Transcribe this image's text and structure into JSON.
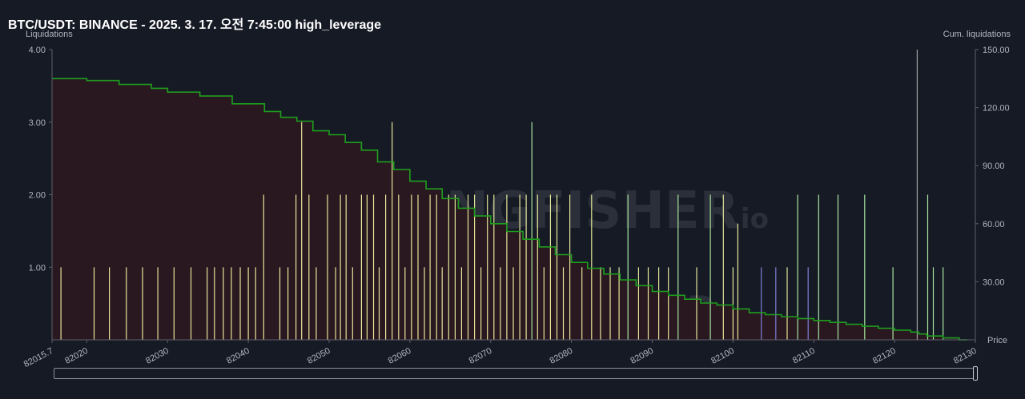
{
  "header": {
    "title": "BTC/USDT: BINANCE - 2025. 3. 17. 오전 7:45:00 high_leverage"
  },
  "watermark": {
    "text": "THE KINGFISHER",
    "suffix": ".io"
  },
  "colors": {
    "background": "#161a25",
    "cum_line": "#1e9e1e",
    "cum_fill": "#2a1820",
    "bar_yellow": "#e4e69a",
    "bar_green": "#a8e6a0",
    "bar_purple": "#8080d8",
    "bar_gray": "#a0a0a0"
  },
  "chart_data": {
    "type": "bar",
    "title": "BTC/USDT: BINANCE - 2025. 3. 17. 오전 7:45:00 high_leverage",
    "xlabel": "Price",
    "ylabel": "Liquidations",
    "y2label": "Cum. liquidations",
    "xlim": [
      82015.7,
      82130
    ],
    "ylim": [
      0,
      4
    ],
    "y2lim": [
      0,
      150
    ],
    "x_ticks": [
      "82015.7",
      "82020",
      "82030",
      "82040",
      "82050",
      "82060",
      "82070",
      "82080",
      "82090",
      "82100",
      "82110",
      "82120",
      "82130"
    ],
    "y_ticks": [
      "1.00",
      "2.00",
      "3.00",
      "4.00"
    ],
    "y2_ticks": [
      "30.00",
      "60.00",
      "90.00",
      "120.00",
      "150.00"
    ],
    "series": [
      {
        "type": "bar",
        "values": [
          {
            "x": 82016.8,
            "y": 1,
            "c": "yellow"
          },
          {
            "x": 82020.9,
            "y": 1,
            "c": "yellow"
          },
          {
            "x": 82022.8,
            "y": 1,
            "c": "yellow"
          },
          {
            "x": 82024.9,
            "y": 1,
            "c": "yellow"
          },
          {
            "x": 82026.9,
            "y": 1,
            "c": "yellow"
          },
          {
            "x": 82028.8,
            "y": 1,
            "c": "yellow"
          },
          {
            "x": 82030.8,
            "y": 1,
            "c": "yellow"
          },
          {
            "x": 82032.9,
            "y": 1,
            "c": "yellow"
          },
          {
            "x": 82034.9,
            "y": 1,
            "c": "yellow"
          },
          {
            "x": 82035.8,
            "y": 1,
            "c": "yellow"
          },
          {
            "x": 82036.9,
            "y": 1,
            "c": "yellow"
          },
          {
            "x": 82037.9,
            "y": 1,
            "c": "yellow"
          },
          {
            "x": 82039,
            "y": 1,
            "c": "yellow"
          },
          {
            "x": 82040,
            "y": 1,
            "c": "yellow"
          },
          {
            "x": 82040.9,
            "y": 1,
            "c": "yellow"
          },
          {
            "x": 82041.9,
            "y": 2,
            "c": "yellow"
          },
          {
            "x": 82043.9,
            "y": 1,
            "c": "yellow"
          },
          {
            "x": 82044.9,
            "y": 1,
            "c": "yellow"
          },
          {
            "x": 82045.9,
            "y": 2,
            "c": "yellow"
          },
          {
            "x": 82046.6,
            "y": 3,
            "c": "yellow"
          },
          {
            "x": 82047.5,
            "y": 2,
            "c": "yellow"
          },
          {
            "x": 82048.4,
            "y": 1,
            "c": "yellow"
          },
          {
            "x": 82049.8,
            "y": 2,
            "c": "yellow"
          },
          {
            "x": 82050.8,
            "y": 1,
            "c": "yellow"
          },
          {
            "x": 82051.4,
            "y": 2,
            "c": "yellow"
          },
          {
            "x": 82052.1,
            "y": 2,
            "c": "yellow"
          },
          {
            "x": 82052.9,
            "y": 1,
            "c": "yellow"
          },
          {
            "x": 82054,
            "y": 2,
            "c": "yellow"
          },
          {
            "x": 82054.7,
            "y": 2,
            "c": "yellow"
          },
          {
            "x": 82055.5,
            "y": 2,
            "c": "yellow"
          },
          {
            "x": 82056.2,
            "y": 1,
            "c": "yellow"
          },
          {
            "x": 82057,
            "y": 2,
            "c": "yellow"
          },
          {
            "x": 82057.8,
            "y": 3,
            "c": "yellow"
          },
          {
            "x": 82058.6,
            "y": 2,
            "c": "yellow"
          },
          {
            "x": 82059.4,
            "y": 1,
            "c": "yellow"
          },
          {
            "x": 82060.2,
            "y": 2,
            "c": "yellow"
          },
          {
            "x": 82061,
            "y": 2,
            "c": "yellow"
          },
          {
            "x": 82061.8,
            "y": 1,
            "c": "yellow"
          },
          {
            "x": 82062.5,
            "y": 2,
            "c": "yellow"
          },
          {
            "x": 82063.3,
            "y": 2,
            "c": "yellow"
          },
          {
            "x": 82064,
            "y": 1,
            "c": "yellow"
          },
          {
            "x": 82064.8,
            "y": 2,
            "c": "yellow"
          },
          {
            "x": 82065.6,
            "y": 2,
            "c": "yellow"
          },
          {
            "x": 82066.4,
            "y": 1,
            "c": "yellow"
          },
          {
            "x": 82067.2,
            "y": 2,
            "c": "yellow"
          },
          {
            "x": 82068,
            "y": 2,
            "c": "yellow"
          },
          {
            "x": 82068.8,
            "y": 1,
            "c": "yellow"
          },
          {
            "x": 82069.6,
            "y": 2,
            "c": "yellow"
          },
          {
            "x": 82070.4,
            "y": 2,
            "c": "yellow"
          },
          {
            "x": 82071.2,
            "y": 1,
            "c": "yellow"
          },
          {
            "x": 82072,
            "y": 2,
            "c": "yellow"
          },
          {
            "x": 82072.8,
            "y": 1,
            "c": "yellow"
          },
          {
            "x": 82073.6,
            "y": 2,
            "c": "yellow"
          },
          {
            "x": 82074.4,
            "y": 2,
            "c": "yellow"
          },
          {
            "x": 82075.1,
            "y": 3,
            "c": "green"
          },
          {
            "x": 82075.8,
            "y": 2,
            "c": "yellow"
          },
          {
            "x": 82076.6,
            "y": 1,
            "c": "yellow"
          },
          {
            "x": 82077.4,
            "y": 2,
            "c": "yellow"
          },
          {
            "x": 82078.2,
            "y": 2,
            "c": "yellow"
          },
          {
            "x": 82079,
            "y": 1,
            "c": "yellow"
          },
          {
            "x": 82079.8,
            "y": 2,
            "c": "yellow"
          },
          {
            "x": 82081.3,
            "y": 1,
            "c": "yellow"
          },
          {
            "x": 82082.5,
            "y": 2,
            "c": "yellow"
          },
          {
            "x": 82083.6,
            "y": 1,
            "c": "yellow"
          },
          {
            "x": 82084.8,
            "y": 1,
            "c": "yellow"
          },
          {
            "x": 82085.9,
            "y": 1,
            "c": "yellow"
          },
          {
            "x": 82087,
            "y": 2,
            "c": "green"
          },
          {
            "x": 82088.3,
            "y": 1,
            "c": "yellow"
          },
          {
            "x": 82089.5,
            "y": 1,
            "c": "yellow"
          },
          {
            "x": 82090.8,
            "y": 1,
            "c": "yellow"
          },
          {
            "x": 82092,
            "y": 1,
            "c": "yellow"
          },
          {
            "x": 82093.2,
            "y": 2,
            "c": "green"
          },
          {
            "x": 82095.5,
            "y": 1,
            "c": "yellow"
          },
          {
            "x": 82097.2,
            "y": 2,
            "c": "green"
          },
          {
            "x": 82098.8,
            "y": 2,
            "c": "yellow"
          },
          {
            "x": 82100,
            "y": 1,
            "c": "yellow"
          },
          {
            "x": 82100.6,
            "y": 1.6,
            "c": "yellow"
          },
          {
            "x": 82103.5,
            "y": 1,
            "c": "purple"
          },
          {
            "x": 82105.3,
            "y": 1,
            "c": "purple"
          },
          {
            "x": 82106.7,
            "y": 1,
            "c": "yellow"
          },
          {
            "x": 82108,
            "y": 2,
            "c": "green"
          },
          {
            "x": 82109.3,
            "y": 1,
            "c": "purple"
          },
          {
            "x": 82110.6,
            "y": 2,
            "c": "green"
          },
          {
            "x": 82113,
            "y": 2,
            "c": "green"
          },
          {
            "x": 82116.3,
            "y": 2,
            "c": "green"
          },
          {
            "x": 82119.8,
            "y": 1,
            "c": "green"
          },
          {
            "x": 82122.8,
            "y": 4,
            "c": "gray"
          },
          {
            "x": 82124.1,
            "y": 2,
            "c": "green"
          },
          {
            "x": 82124.8,
            "y": 1,
            "c": "green"
          },
          {
            "x": 82126,
            "y": 1,
            "c": "green"
          }
        ]
      },
      {
        "type": "line",
        "name": "Cum. liquidations",
        "x": [
          82015.7,
          82020,
          82024,
          82028,
          82030,
          82034,
          82038,
          82042,
          82044,
          82046,
          82048,
          82050,
          82052,
          82054,
          82056,
          82058,
          82060,
          82062,
          82064,
          82066,
          82068,
          82070,
          82072,
          82074,
          82076,
          82078,
          82080,
          82082,
          82084,
          82086,
          82088,
          82090,
          82092,
          82094,
          82096,
          82098,
          82100,
          82102,
          82104,
          82106,
          82108,
          82110,
          82112,
          82114,
          82116,
          82118,
          82120,
          82122,
          82123,
          82124,
          82126,
          82128
        ],
        "y": [
          135,
          134,
          132,
          130,
          128,
          126,
          122,
          118,
          115,
          113,
          108,
          106,
          102,
          98,
          92,
          88,
          82,
          78,
          73,
          68,
          64,
          60,
          56,
          52,
          48,
          44,
          40,
          37,
          34,
          31,
          28,
          25,
          23,
          21,
          19,
          18,
          16,
          14,
          13,
          12,
          11,
          10,
          9,
          8,
          7,
          6,
          5,
          4,
          3,
          2,
          1,
          0
        ]
      }
    ],
    "grid": false,
    "legend": "none"
  }
}
